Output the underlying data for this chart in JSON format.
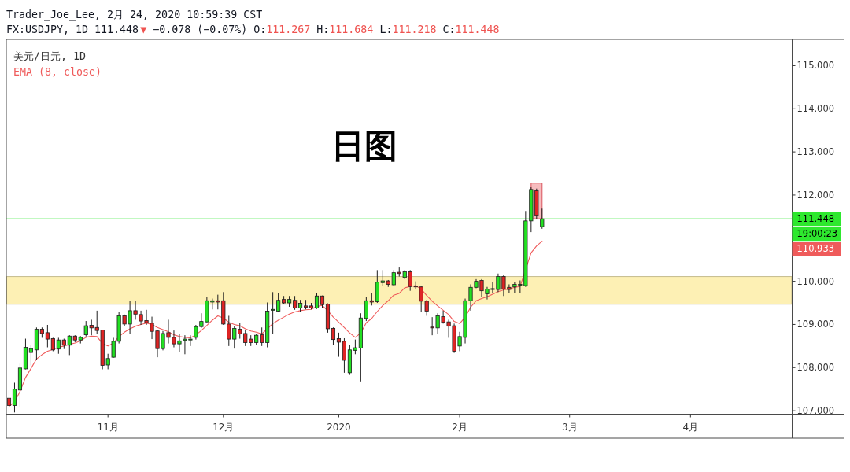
{
  "chart_data": {
    "type": "candlestick",
    "title": "日图",
    "subtitle": "美元/日元, 1D",
    "categories": [
      null,
      null,
      null,
      null,
      null,
      null,
      null,
      null,
      null,
      null,
      null,
      null,
      null,
      null,
      null,
      null,
      null,
      null,
      "11月",
      null,
      null,
      null,
      null,
      null,
      null,
      null,
      null,
      null,
      null,
      null,
      null,
      null,
      null,
      null,
      null,
      null,
      null,
      null,
      null,
      "12月",
      null,
      null,
      null,
      null,
      null,
      null,
      null,
      null,
      null,
      null,
      null,
      null,
      null,
      null,
      null,
      null,
      null,
      null,
      null,
      null,
      "2020",
      null,
      null,
      null,
      null,
      null,
      null,
      null,
      null,
      null,
      null,
      null,
      null,
      null,
      null,
      null,
      null,
      null,
      null,
      null,
      null,
      null,
      "2月",
      null,
      null,
      null,
      null,
      null,
      null,
      null,
      null,
      null,
      null,
      null,
      null,
      null,
      null,
      null,
      null,
      null,
      null,
      null,
      "3月",
      null,
      null,
      null,
      null,
      null,
      null,
      null,
      null,
      null,
      null,
      null,
      null,
      null,
      null,
      null,
      null,
      null,
      null,
      null,
      null,
      null,
      "4月",
      null,
      null,
      null,
      null,
      null,
      null,
      null,
      null,
      null,
      null,
      null,
      null,
      null,
      null,
      null,
      null,
      null,
      null
    ],
    "ohlc": [
      [
        107.29,
        107.47,
        106.96,
        107.12
      ],
      [
        107.12,
        107.65,
        106.96,
        107.5
      ],
      [
        107.48,
        108.09,
        107.08,
        107.99
      ],
      [
        107.97,
        108.67,
        107.96,
        108.47
      ],
      [
        108.35,
        108.53,
        108.05,
        108.44
      ],
      [
        108.41,
        108.93,
        108.17,
        108.89
      ],
      [
        108.89,
        108.93,
        108.69,
        108.79
      ],
      [
        108.81,
        108.99,
        108.47,
        108.66
      ],
      [
        108.67,
        108.69,
        108.38,
        108.41
      ],
      [
        108.43,
        108.69,
        108.32,
        108.64
      ],
      [
        108.64,
        108.67,
        108.43,
        108.52
      ],
      [
        108.52,
        108.75,
        108.29,
        108.73
      ],
      [
        108.73,
        108.75,
        108.59,
        108.64
      ],
      [
        108.64,
        108.73,
        108.56,
        108.7
      ],
      [
        108.76,
        109.08,
        108.72,
        108.97
      ],
      [
        108.98,
        109.11,
        108.75,
        108.92
      ],
      [
        108.93,
        109.32,
        108.78,
        108.86
      ],
      [
        108.87,
        108.88,
        107.96,
        108.05
      ],
      [
        108.06,
        108.32,
        107.96,
        108.21
      ],
      [
        108.24,
        108.69,
        108.23,
        108.61
      ],
      [
        108.61,
        109.29,
        108.56,
        109.2
      ],
      [
        109.2,
        109.23,
        108.96,
        109.01
      ],
      [
        109.01,
        109.54,
        108.78,
        109.32
      ],
      [
        109.32,
        109.54,
        109.11,
        109.24
      ],
      [
        109.23,
        109.32,
        108.99,
        109.08
      ],
      [
        109.09,
        109.34,
        108.99,
        109.04
      ],
      [
        109.03,
        109.18,
        108.66,
        108.84
      ],
      [
        108.85,
        108.87,
        108.24,
        108.44
      ],
      [
        108.44,
        108.85,
        108.4,
        108.79
      ],
      [
        108.81,
        109.11,
        108.56,
        108.7
      ],
      [
        108.7,
        108.86,
        108.47,
        108.55
      ],
      [
        108.55,
        108.78,
        108.37,
        108.62
      ],
      [
        108.63,
        108.75,
        108.31,
        108.66
      ],
      [
        108.64,
        108.75,
        108.5,
        108.66
      ],
      [
        108.7,
        108.99,
        108.65,
        108.95
      ],
      [
        108.95,
        109.26,
        108.92,
        109.07
      ],
      [
        109.06,
        109.63,
        109.05,
        109.55
      ],
      [
        109.52,
        109.6,
        109.35,
        109.55
      ],
      [
        109.55,
        109.69,
        109.35,
        109.52
      ],
      [
        109.55,
        109.75,
        108.99,
        109.01
      ],
      [
        109.01,
        109.2,
        108.5,
        108.66
      ],
      [
        108.66,
        108.96,
        108.44,
        108.91
      ],
      [
        108.89,
        109.03,
        108.67,
        108.78
      ],
      [
        108.79,
        108.87,
        108.5,
        108.58
      ],
      [
        108.66,
        108.75,
        108.5,
        108.58
      ],
      [
        108.58,
        108.78,
        108.53,
        108.75
      ],
      [
        108.76,
        108.93,
        108.5,
        108.58
      ],
      [
        108.58,
        109.51,
        108.47,
        109.31
      ],
      [
        109.33,
        109.75,
        108.78,
        109.35
      ],
      [
        109.31,
        109.72,
        109.29,
        109.56
      ],
      [
        109.58,
        109.66,
        109.47,
        109.5
      ],
      [
        109.5,
        109.66,
        109.41,
        109.58
      ],
      [
        109.56,
        109.66,
        109.34,
        109.38
      ],
      [
        109.38,
        109.57,
        109.29,
        109.49
      ],
      [
        109.43,
        109.57,
        109.35,
        109.4
      ],
      [
        109.43,
        109.5,
        109.35,
        109.38
      ],
      [
        109.38,
        109.72,
        109.36,
        109.66
      ],
      [
        109.66,
        109.67,
        109.38,
        109.46
      ],
      [
        109.47,
        109.49,
        108.81,
        108.9
      ],
      [
        108.91,
        108.93,
        108.53,
        108.65
      ],
      [
        108.67,
        108.81,
        108.25,
        108.59
      ],
      [
        108.61,
        108.68,
        107.88,
        108.17
      ],
      [
        107.88,
        108.53,
        107.83,
        108.41
      ],
      [
        108.4,
        108.65,
        108.31,
        108.46
      ],
      [
        108.45,
        109.26,
        107.68,
        109.15
      ],
      [
        109.14,
        109.63,
        109.08,
        109.55
      ],
      [
        109.55,
        109.72,
        109.44,
        109.52
      ],
      [
        109.53,
        110.26,
        109.5,
        109.98
      ],
      [
        109.97,
        110.26,
        109.9,
        110.01
      ],
      [
        110.01,
        110.03,
        109.87,
        109.93
      ],
      [
        109.92,
        110.26,
        109.9,
        110.2
      ],
      [
        110.21,
        110.32,
        110.11,
        110.18
      ],
      [
        110.09,
        110.26,
        110.05,
        110.22
      ],
      [
        110.22,
        110.26,
        109.78,
        109.88
      ],
      [
        109.89,
        110.0,
        109.81,
        109.87
      ],
      [
        109.87,
        109.88,
        109.29,
        109.54
      ],
      [
        109.54,
        109.57,
        109.2,
        109.31
      ],
      [
        108.94,
        109.17,
        108.75,
        108.92
      ],
      [
        108.92,
        109.26,
        108.78,
        109.2
      ],
      [
        109.18,
        109.32,
        109.02,
        109.05
      ],
      [
        109.06,
        109.11,
        108.69,
        108.96
      ],
      [
        108.97,
        109.02,
        108.34,
        108.38
      ],
      [
        108.5,
        108.83,
        108.38,
        108.72
      ],
      [
        108.7,
        109.6,
        108.56,
        109.55
      ],
      [
        109.55,
        109.93,
        109.32,
        109.86
      ],
      [
        109.86,
        110.05,
        109.84,
        110.0
      ],
      [
        110.02,
        110.05,
        109.63,
        109.78
      ],
      [
        109.71,
        109.87,
        109.58,
        109.82
      ],
      [
        109.81,
        109.99,
        109.72,
        109.83
      ],
      [
        109.81,
        110.18,
        109.75,
        110.11
      ],
      [
        110.11,
        110.14,
        109.66,
        109.82
      ],
      [
        109.86,
        109.93,
        109.72,
        109.81
      ],
      [
        109.87,
        109.99,
        109.72,
        109.93
      ],
      [
        109.91,
        110.02,
        109.72,
        109.93
      ],
      [
        109.9,
        111.63,
        109.87,
        111.4
      ],
      [
        111.4,
        112.18,
        111.14,
        112.13
      ],
      [
        112.1,
        112.15,
        111.45,
        111.53
      ],
      [
        111.267,
        111.684,
        111.218,
        111.448
      ],
      null,
      null,
      null,
      null,
      null,
      null,
      null,
      null,
      null,
      null,
      null,
      null,
      null,
      null,
      null,
      null,
      null,
      null,
      null,
      null,
      null,
      null,
      null,
      null,
      null,
      null,
      null,
      null,
      null,
      null,
      null,
      null,
      null,
      null,
      null,
      null,
      null,
      null,
      null,
      null,
      null,
      null,
      null,
      null,
      null
    ],
    "colors": [
      "#e02424",
      "#22e022",
      "#22e022",
      "#22e022",
      "#22e022",
      "#22e022",
      "#e02424",
      "#e02424",
      "#e02424",
      "#22e022",
      "#e02424",
      "#22e022",
      "#e02424",
      "#22e022",
      "#22e022",
      "#e02424",
      "#e02424",
      "#e02424",
      "#22e022",
      "#22e022",
      "#22e022",
      "#e02424",
      "#22e022",
      "#e02424",
      "#e02424",
      "#e02424",
      "#e02424",
      "#e02424",
      "#22e022",
      "#e02424",
      "#e02424",
      "#22e022",
      "#22e022",
      "#22e022",
      "#22e022",
      "#22e022",
      "#22e022",
      "#22e022",
      "#e02424",
      "#e02424",
      "#e02424",
      "#22e022",
      "#e02424",
      "#e02424",
      "#e02424",
      "#22e022",
      "#e02424",
      "#22e022",
      "#22e022",
      "#22e022",
      "#e02424",
      "#22e022",
      "#e02424",
      "#22e022",
      "#e02424",
      "#e02424",
      "#22e022",
      "#e02424",
      "#e02424",
      "#e02424",
      "#e02424",
      "#e02424",
      "#22e022",
      "#22e022",
      "#22e022",
      "#22e022",
      "#e02424",
      "#22e022",
      "#22e022",
      "#e02424",
      "#22e022",
      "#e02424",
      "#22e022",
      "#e02424",
      "#e02424",
      "#e02424",
      "#e02424",
      "#e02424",
      "#22e022",
      "#e02424",
      "#e02424",
      "#e02424",
      "#22e022",
      "#22e022",
      "#22e022",
      "#22e022",
      "#e02424",
      "#22e022",
      "#22e022",
      "#22e022",
      "#e02424",
      "#e02424",
      "#22e022",
      "#22e022",
      "#22e022",
      "#22e022",
      "#e02424",
      "#22e022",
      null,
      null,
      null,
      null,
      null,
      null,
      null,
      null,
      null,
      null,
      null,
      null,
      null,
      null,
      null,
      null,
      null,
      null,
      null,
      null,
      null,
      null,
      null,
      null,
      null,
      null,
      null,
      null,
      null,
      null,
      null,
      null,
      null,
      null,
      null,
      null,
      null,
      null,
      null,
      null,
      null,
      null,
      null,
      null,
      null
    ],
    "series": [
      {
        "name": "EMA (8, close)",
        "type": "line",
        "color": "#ef5b5b",
        "values": [
          107.1,
          107.2,
          107.45,
          107.77,
          107.98,
          108.2,
          108.3,
          108.38,
          108.42,
          108.47,
          108.5,
          108.54,
          108.57,
          108.62,
          108.7,
          108.73,
          108.72,
          108.56,
          108.5,
          108.57,
          108.72,
          108.82,
          108.9,
          108.96,
          109.0,
          109.03,
          109.0,
          108.93,
          108.88,
          108.83,
          108.76,
          108.72,
          108.7,
          108.69,
          108.76,
          108.86,
          108.98,
          109.1,
          109.2,
          109.15,
          109.05,
          109.0,
          108.97,
          108.9,
          108.85,
          108.82,
          108.78,
          108.9,
          109.02,
          109.1,
          109.17,
          109.24,
          109.29,
          109.32,
          109.34,
          109.35,
          109.42,
          109.44,
          109.32,
          109.17,
          109.05,
          108.93,
          108.8,
          108.7,
          108.8,
          109.04,
          109.14,
          109.3,
          109.44,
          109.55,
          109.68,
          109.72,
          109.85,
          109.88,
          109.9,
          109.82,
          109.67,
          109.54,
          109.43,
          109.33,
          109.23,
          109.07,
          109.02,
          109.17,
          109.4,
          109.55,
          109.6,
          109.64,
          109.7,
          109.76,
          109.8,
          109.82,
          109.86,
          109.88,
          null,
          110.66,
          110.82,
          110.93,
          null,
          null,
          null,
          null,
          null,
          null,
          null,
          null,
          null,
          null,
          null,
          null,
          null,
          null,
          null,
          null,
          null,
          null,
          null,
          null,
          null,
          null,
          null,
          null,
          null,
          null,
          null,
          null,
          null,
          null,
          null,
          null,
          null,
          null,
          null,
          null,
          null,
          null,
          null,
          null,
          null,
          null,
          null,
          null,
          null
        ]
      }
    ],
    "ylim": [
      106.92,
      115.61
    ],
    "yticks": [
      {
        "value": 107,
        "label": "107.000"
      },
      {
        "value": 108,
        "label": "108.000"
      },
      {
        "value": 109,
        "label": "109.000"
      },
      {
        "value": 110,
        "label": "110.000"
      },
      {
        "value": 112,
        "label": "112.000"
      },
      {
        "value": 113,
        "label": "113.000"
      },
      {
        "value": 114,
        "label": "114.000"
      },
      {
        "value": 115,
        "label": "115.000"
      }
    ],
    "ref_lines": [
      {
        "axis": "y",
        "value": 111.448,
        "label": "111.448",
        "color": "#2ee82e"
      }
    ],
    "bands": [
      {
        "axis": "y",
        "from": 109.47,
        "to": 110.11,
        "color": "#fdf0b4"
      }
    ],
    "annotations": [
      "Trader_Joe_Lee, 2月 24, 2020 10:59:39 CST",
      "FX:USDJPY, 1D 111.448",
      "▼",
      "−0.078 (−0.07%)",
      "O:",
      "111.267",
      "H:",
      "111.684",
      "L:",
      "111.218",
      "C:",
      "111.448",
      "19:00:23",
      "110.933"
    ],
    "legend": "top left"
  }
}
